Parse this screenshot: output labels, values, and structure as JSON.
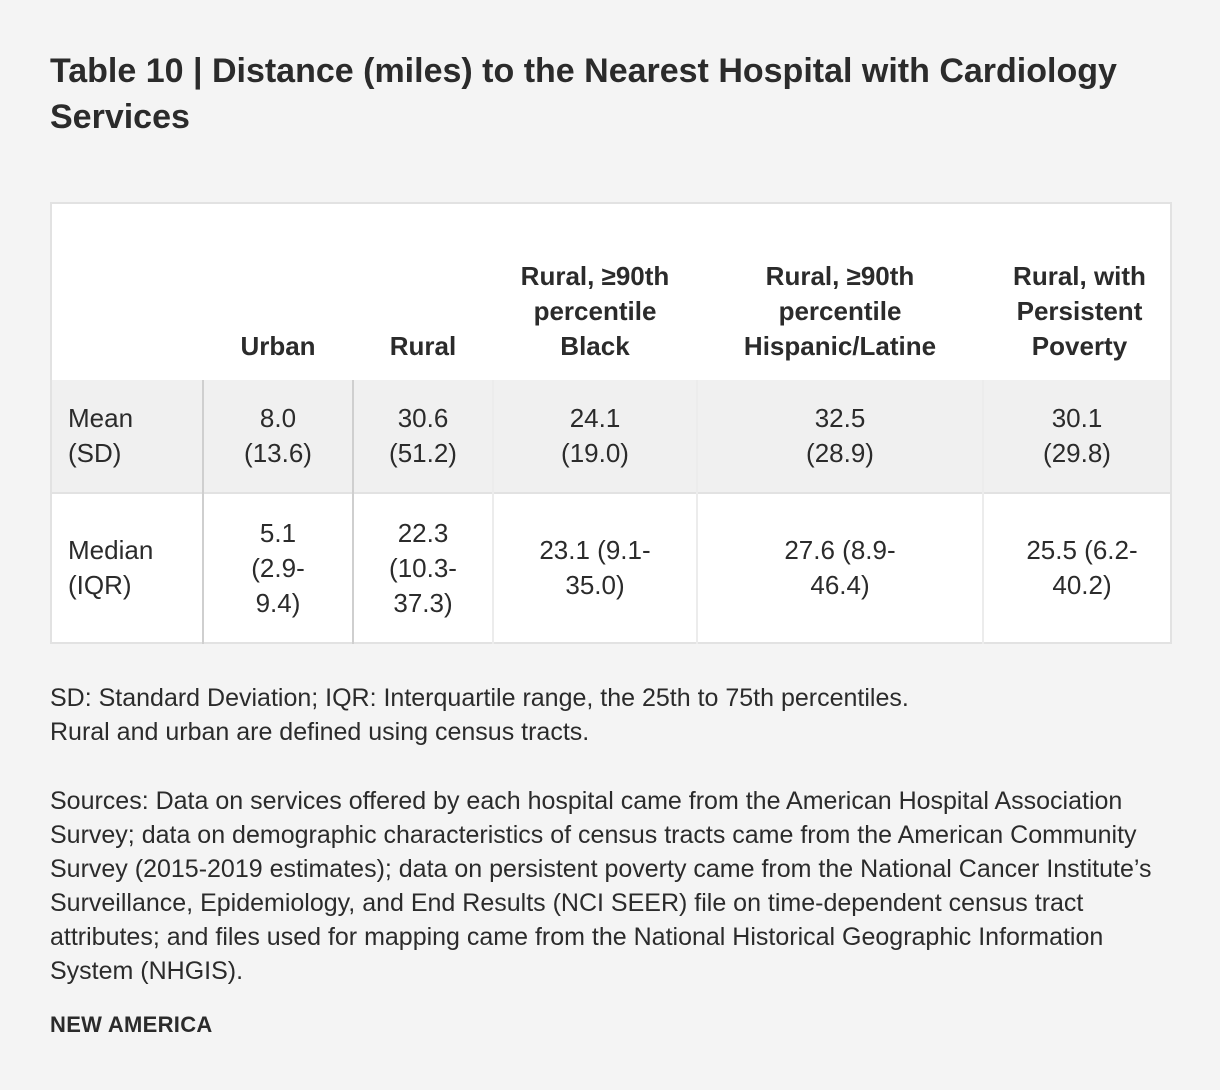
{
  "title": "Table 10 | Distance (miles) to the Nearest Hospital with Cardiology Services",
  "table": {
    "headers": [
      "",
      "Urban",
      "Rural",
      "Rural, ≥90th percentile Black",
      "Rural, ≥90th percentile Hispanic/Latine",
      "Rural, with Persistent Poverty"
    ],
    "rows": [
      {
        "label": "Mean (SD)",
        "cells": [
          "8.0 (13.6)",
          "30.6 (51.2)",
          "24.1 (19.0)",
          "32.5 (28.9)",
          "30.1 (29.8)"
        ]
      },
      {
        "label": "Median (IQR)",
        "cells": [
          "5.1 (2.9-9.4)",
          "22.3 (10.3-37.3)",
          "23.1 (9.1-35.0)",
          "27.6 (8.9-46.4)",
          "25.5 (6.2-40.2)"
        ]
      }
    ]
  },
  "notes": [
    "SD: Standard Deviation; IQR: Interquartile range, the 25th to 75th percentiles.",
    "Rural and urban are defined using census tracts."
  ],
  "sources": "Sources: Data on services offered by each hospital came from the American Hospital Association Survey; data on demographic characteristics of census tracts came from the American Community Survey (2015-2019 estimates); data on persistent poverty came from the National Cancer Institute’s Surveillance, Epidemiology, and End Results (NCI SEER) file on time-dependent census tract attributes; and files used for mapping came from the National Historical Geographic Information System (NHGIS).",
  "brand": "NEW AMERICA"
}
